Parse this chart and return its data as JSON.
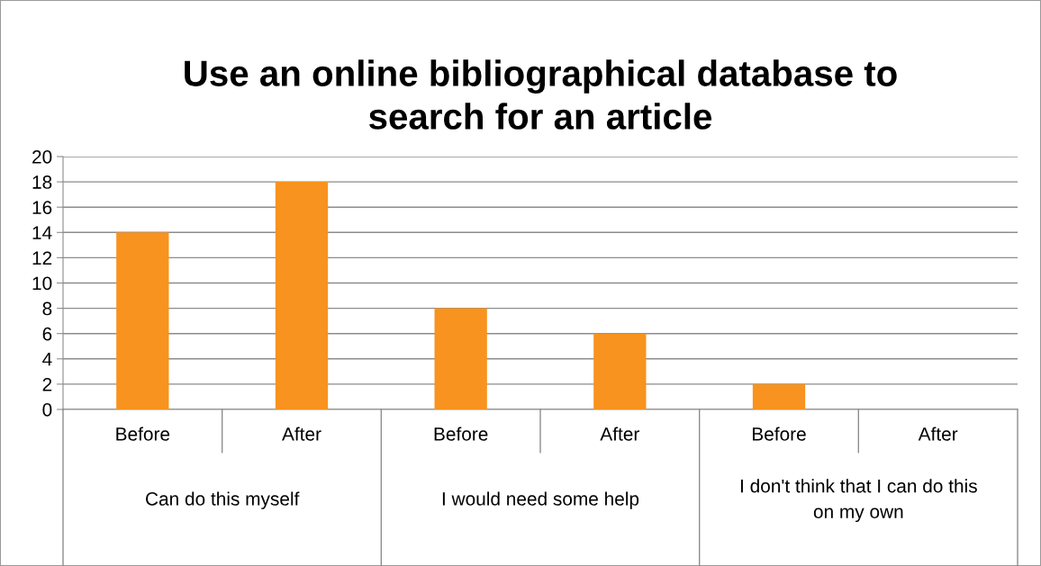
{
  "chart_data": {
    "type": "bar",
    "title": "Use an online bibliographical database to\nsearch for an article",
    "categories": [
      "Before",
      "After",
      "Before",
      "After",
      "Before",
      "After"
    ],
    "values": [
      14,
      18,
      8,
      6,
      2,
      0
    ],
    "color": "#f7931e",
    "ylim": [
      0,
      20
    ],
    "yticks": [
      0,
      2,
      4,
      6,
      8,
      10,
      12,
      14,
      16,
      18,
      20
    ],
    "grid": "y",
    "annotations": [
      "Can do this myself",
      "I would need some help",
      "I don't think that I can do this\non my own"
    ]
  }
}
